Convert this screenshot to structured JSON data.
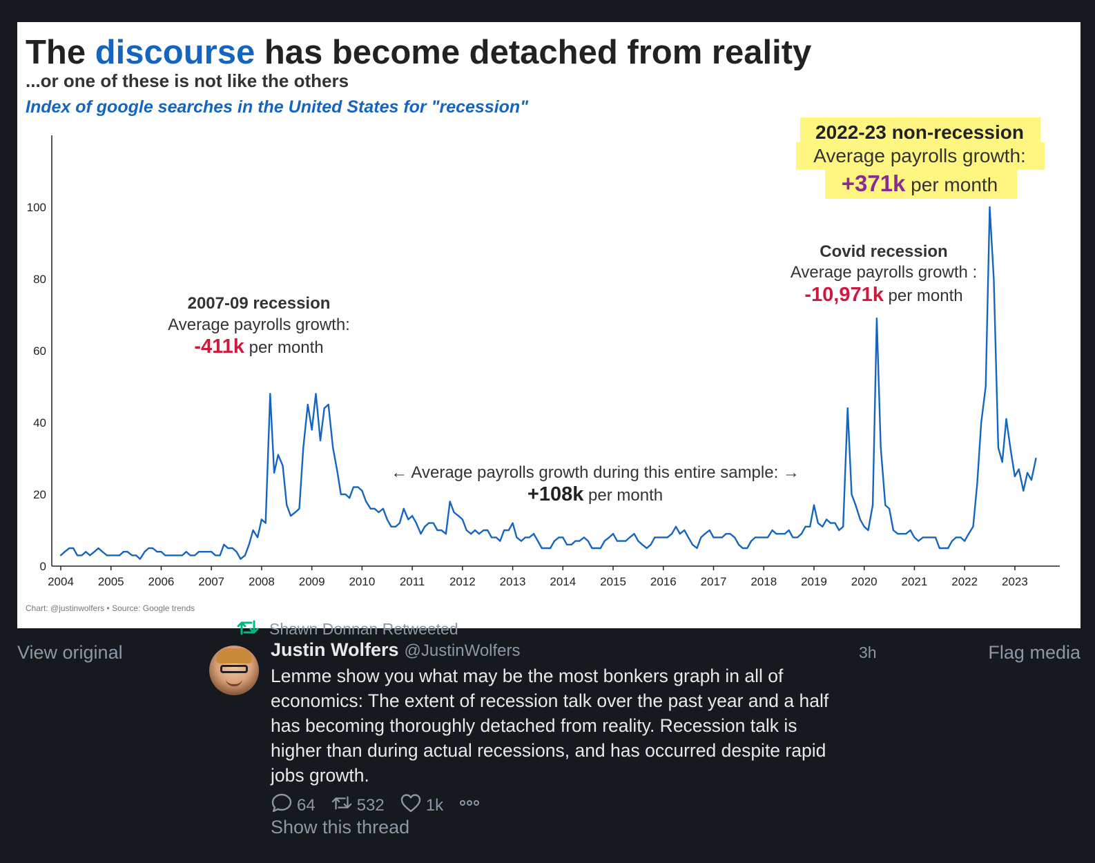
{
  "retweet": {
    "label": "Shawn Donnan Retweeted"
  },
  "media": {
    "view_original": "View original",
    "flag_media": "Flag media"
  },
  "author": {
    "name": "Justin Wolfers",
    "handle": "@JustinWolfers",
    "time": "3h"
  },
  "tweet": {
    "text_lines": [
      "Lemme show you what may be the most bonkers graph in all of",
      "economics: The extent of recession talk over the past year and a half",
      "has becoming thoroughly detached from reality. Recession talk is",
      "higher than during actual recessions, and has occurred despite rapid",
      "jobs growth."
    ]
  },
  "actions": {
    "replies": "64",
    "retweets": "532",
    "likes": "1k"
  },
  "show_thread": "Show this thread",
  "icons": [
    "retweet-icon",
    "reply-icon",
    "like-icon",
    "more-icon"
  ],
  "colors": {
    "accent": "#1565c0",
    "negative": "#d0183f",
    "positive": "#8b2a8f",
    "highlight": "#fff36b",
    "retweet_green": "#00ba7c"
  },
  "chart_data": {
    "type": "line",
    "title_parts": [
      "The ",
      "discourse",
      " has become detached from reality"
    ],
    "subtitle": "...or one of these is not like the others",
    "series_label": "Index of google searches in the United States for \"recession\"",
    "xlabel": "",
    "ylabel": "",
    "ylim": [
      0,
      120
    ],
    "yticks": [
      0,
      20,
      40,
      60,
      80,
      100
    ],
    "xticks": [
      2004,
      2005,
      2006,
      2007,
      2008,
      2009,
      2010,
      2011,
      2012,
      2013,
      2014,
      2015,
      2016,
      2017,
      2018,
      2019,
      2020,
      2021,
      2022,
      2023
    ],
    "grid": false,
    "source": "Chart: @justinwolfers • Source: Google trends",
    "annotations": [
      {
        "title": "2007-09 recession",
        "line": "Average payrolls growth:",
        "value": "-411k",
        "suffix": " per month",
        "tone": "negative"
      },
      {
        "title": "Covid recession",
        "line": "Average payrolls growth :",
        "value": "-10,971k",
        "suffix": " per month",
        "tone": "negative"
      },
      {
        "title": "2022-23 non-recession",
        "line": "Average payrolls growth:",
        "value": "+371k",
        "suffix": " per month",
        "tone": "positive"
      },
      {
        "title": "",
        "line": "← Average payrolls growth during this entire sample: →",
        "value": "+108k",
        "suffix": " per month",
        "tone": "neutral"
      }
    ],
    "series": [
      {
        "points": [
          [
            2004.0,
            3
          ],
          [
            2004.08,
            4
          ],
          [
            2004.17,
            5
          ],
          [
            2004.25,
            5
          ],
          [
            2004.33,
            3
          ],
          [
            2004.42,
            3
          ],
          [
            2004.5,
            4
          ],
          [
            2004.58,
            3
          ],
          [
            2004.67,
            4
          ],
          [
            2004.75,
            5
          ],
          [
            2004.83,
            4
          ],
          [
            2004.92,
            3
          ],
          [
            2005.0,
            3
          ],
          [
            2005.08,
            3
          ],
          [
            2005.17,
            3
          ],
          [
            2005.25,
            4
          ],
          [
            2005.33,
            4
          ],
          [
            2005.42,
            3
          ],
          [
            2005.5,
            3
          ],
          [
            2005.58,
            2
          ],
          [
            2005.67,
            4
          ],
          [
            2005.75,
            5
          ],
          [
            2005.83,
            5
          ],
          [
            2005.92,
            4
          ],
          [
            2006.0,
            4
          ],
          [
            2006.08,
            3
          ],
          [
            2006.17,
            3
          ],
          [
            2006.25,
            3
          ],
          [
            2006.33,
            3
          ],
          [
            2006.42,
            3
          ],
          [
            2006.5,
            4
          ],
          [
            2006.58,
            3
          ],
          [
            2006.67,
            3
          ],
          [
            2006.75,
            4
          ],
          [
            2006.83,
            4
          ],
          [
            2006.92,
            4
          ],
          [
            2007.0,
            4
          ],
          [
            2007.08,
            3
          ],
          [
            2007.17,
            3
          ],
          [
            2007.25,
            6
          ],
          [
            2007.33,
            5
          ],
          [
            2007.42,
            5
          ],
          [
            2007.5,
            4
          ],
          [
            2007.58,
            2
          ],
          [
            2007.67,
            3
          ],
          [
            2007.75,
            6
          ],
          [
            2007.83,
            10
          ],
          [
            2007.92,
            8
          ],
          [
            2008.0,
            13
          ],
          [
            2008.08,
            12
          ],
          [
            2008.17,
            48
          ],
          [
            2008.25,
            26
          ],
          [
            2008.33,
            31
          ],
          [
            2008.42,
            28
          ],
          [
            2008.5,
            17
          ],
          [
            2008.58,
            14
          ],
          [
            2008.67,
            15
          ],
          [
            2008.75,
            16
          ],
          [
            2008.83,
            33
          ],
          [
            2008.92,
            45
          ],
          [
            2009.0,
            38
          ],
          [
            2009.08,
            48
          ],
          [
            2009.17,
            35
          ],
          [
            2009.25,
            44
          ],
          [
            2009.33,
            45
          ],
          [
            2009.42,
            33
          ],
          [
            2009.5,
            27
          ],
          [
            2009.58,
            20
          ],
          [
            2009.67,
            20
          ],
          [
            2009.75,
            19
          ],
          [
            2009.83,
            22
          ],
          [
            2009.92,
            22
          ],
          [
            2010.0,
            21
          ],
          [
            2010.08,
            18
          ],
          [
            2010.17,
            16
          ],
          [
            2010.25,
            16
          ],
          [
            2010.33,
            15
          ],
          [
            2010.42,
            16
          ],
          [
            2010.5,
            13
          ],
          [
            2010.58,
            11
          ],
          [
            2010.67,
            11
          ],
          [
            2010.75,
            12
          ],
          [
            2010.83,
            16
          ],
          [
            2010.92,
            13
          ],
          [
            2011.0,
            14
          ],
          [
            2011.08,
            12
          ],
          [
            2011.17,
            9
          ],
          [
            2011.25,
            11
          ],
          [
            2011.33,
            12
          ],
          [
            2011.42,
            12
          ],
          [
            2011.5,
            10
          ],
          [
            2011.58,
            10
          ],
          [
            2011.67,
            9
          ],
          [
            2011.75,
            18
          ],
          [
            2011.83,
            15
          ],
          [
            2011.92,
            14
          ],
          [
            2012.0,
            13
          ],
          [
            2012.08,
            10
          ],
          [
            2012.17,
            9
          ],
          [
            2012.25,
            10
          ],
          [
            2012.33,
            9
          ],
          [
            2012.42,
            10
          ],
          [
            2012.5,
            10
          ],
          [
            2012.58,
            8
          ],
          [
            2012.67,
            8
          ],
          [
            2012.75,
            7
          ],
          [
            2012.83,
            10
          ],
          [
            2012.92,
            10
          ],
          [
            2013.0,
            12
          ],
          [
            2013.08,
            8
          ],
          [
            2013.17,
            7
          ],
          [
            2013.25,
            8
          ],
          [
            2013.33,
            8
          ],
          [
            2013.42,
            9
          ],
          [
            2013.5,
            7
          ],
          [
            2013.58,
            5
          ],
          [
            2013.67,
            5
          ],
          [
            2013.75,
            5
          ],
          [
            2013.83,
            7
          ],
          [
            2013.92,
            8
          ],
          [
            2014.0,
            8
          ],
          [
            2014.08,
            6
          ],
          [
            2014.17,
            6
          ],
          [
            2014.25,
            7
          ],
          [
            2014.33,
            7
          ],
          [
            2014.42,
            8
          ],
          [
            2014.5,
            7
          ],
          [
            2014.58,
            5
          ],
          [
            2014.67,
            5
          ],
          [
            2014.75,
            5
          ],
          [
            2014.83,
            7
          ],
          [
            2014.92,
            8
          ],
          [
            2015.0,
            9
          ],
          [
            2015.08,
            7
          ],
          [
            2015.17,
            7
          ],
          [
            2015.25,
            7
          ],
          [
            2015.33,
            8
          ],
          [
            2015.42,
            9
          ],
          [
            2015.5,
            7
          ],
          [
            2015.58,
            6
          ],
          [
            2015.67,
            5
          ],
          [
            2015.75,
            6
          ],
          [
            2015.83,
            8
          ],
          [
            2015.92,
            8
          ],
          [
            2016.0,
            8
          ],
          [
            2016.08,
            8
          ],
          [
            2016.17,
            9
          ],
          [
            2016.25,
            11
          ],
          [
            2016.33,
            9
          ],
          [
            2016.42,
            10
          ],
          [
            2016.5,
            8
          ],
          [
            2016.58,
            6
          ],
          [
            2016.67,
            5
          ],
          [
            2016.75,
            8
          ],
          [
            2016.83,
            9
          ],
          [
            2016.92,
            10
          ],
          [
            2017.0,
            8
          ],
          [
            2017.08,
            8
          ],
          [
            2017.17,
            8
          ],
          [
            2017.25,
            9
          ],
          [
            2017.33,
            9
          ],
          [
            2017.42,
            8
          ],
          [
            2017.5,
            6
          ],
          [
            2017.58,
            5
          ],
          [
            2017.67,
            5
          ],
          [
            2017.75,
            7
          ],
          [
            2017.83,
            8
          ],
          [
            2017.92,
            8
          ],
          [
            2018.0,
            8
          ],
          [
            2018.08,
            8
          ],
          [
            2018.17,
            10
          ],
          [
            2018.25,
            9
          ],
          [
            2018.33,
            9
          ],
          [
            2018.42,
            9
          ],
          [
            2018.5,
            10
          ],
          [
            2018.58,
            8
          ],
          [
            2018.67,
            8
          ],
          [
            2018.75,
            9
          ],
          [
            2018.83,
            11
          ],
          [
            2018.92,
            11
          ],
          [
            2019.0,
            17
          ],
          [
            2019.08,
            12
          ],
          [
            2019.17,
            11
          ],
          [
            2019.25,
            13
          ],
          [
            2019.33,
            12
          ],
          [
            2019.42,
            12
          ],
          [
            2019.5,
            10
          ],
          [
            2019.58,
            11
          ],
          [
            2019.67,
            44
          ],
          [
            2019.75,
            20
          ],
          [
            2019.83,
            17
          ],
          [
            2019.92,
            13
          ],
          [
            2020.0,
            11
          ],
          [
            2020.08,
            10
          ],
          [
            2020.17,
            17
          ],
          [
            2020.25,
            69
          ],
          [
            2020.33,
            33
          ],
          [
            2020.42,
            17
          ],
          [
            2020.5,
            16
          ],
          [
            2020.58,
            10
          ],
          [
            2020.67,
            9
          ],
          [
            2020.75,
            9
          ],
          [
            2020.83,
            9
          ],
          [
            2020.92,
            10
          ],
          [
            2021.0,
            8
          ],
          [
            2021.08,
            7
          ],
          [
            2021.17,
            8
          ],
          [
            2021.25,
            8
          ],
          [
            2021.33,
            8
          ],
          [
            2021.42,
            8
          ],
          [
            2021.5,
            5
          ],
          [
            2021.58,
            5
          ],
          [
            2021.67,
            5
          ],
          [
            2021.75,
            7
          ],
          [
            2021.83,
            8
          ],
          [
            2021.92,
            8
          ],
          [
            2022.0,
            7
          ],
          [
            2022.08,
            9
          ],
          [
            2022.17,
            11
          ],
          [
            2022.25,
            23
          ],
          [
            2022.33,
            40
          ],
          [
            2022.42,
            50
          ],
          [
            2022.5,
            100
          ],
          [
            2022.58,
            80
          ],
          [
            2022.67,
            33
          ],
          [
            2022.75,
            29
          ],
          [
            2022.83,
            41
          ],
          [
            2022.92,
            32
          ],
          [
            2023.0,
            25
          ],
          [
            2023.08,
            27
          ],
          [
            2023.17,
            21
          ],
          [
            2023.25,
            26
          ],
          [
            2023.33,
            24
          ],
          [
            2023.42,
            30
          ]
        ]
      }
    ]
  }
}
